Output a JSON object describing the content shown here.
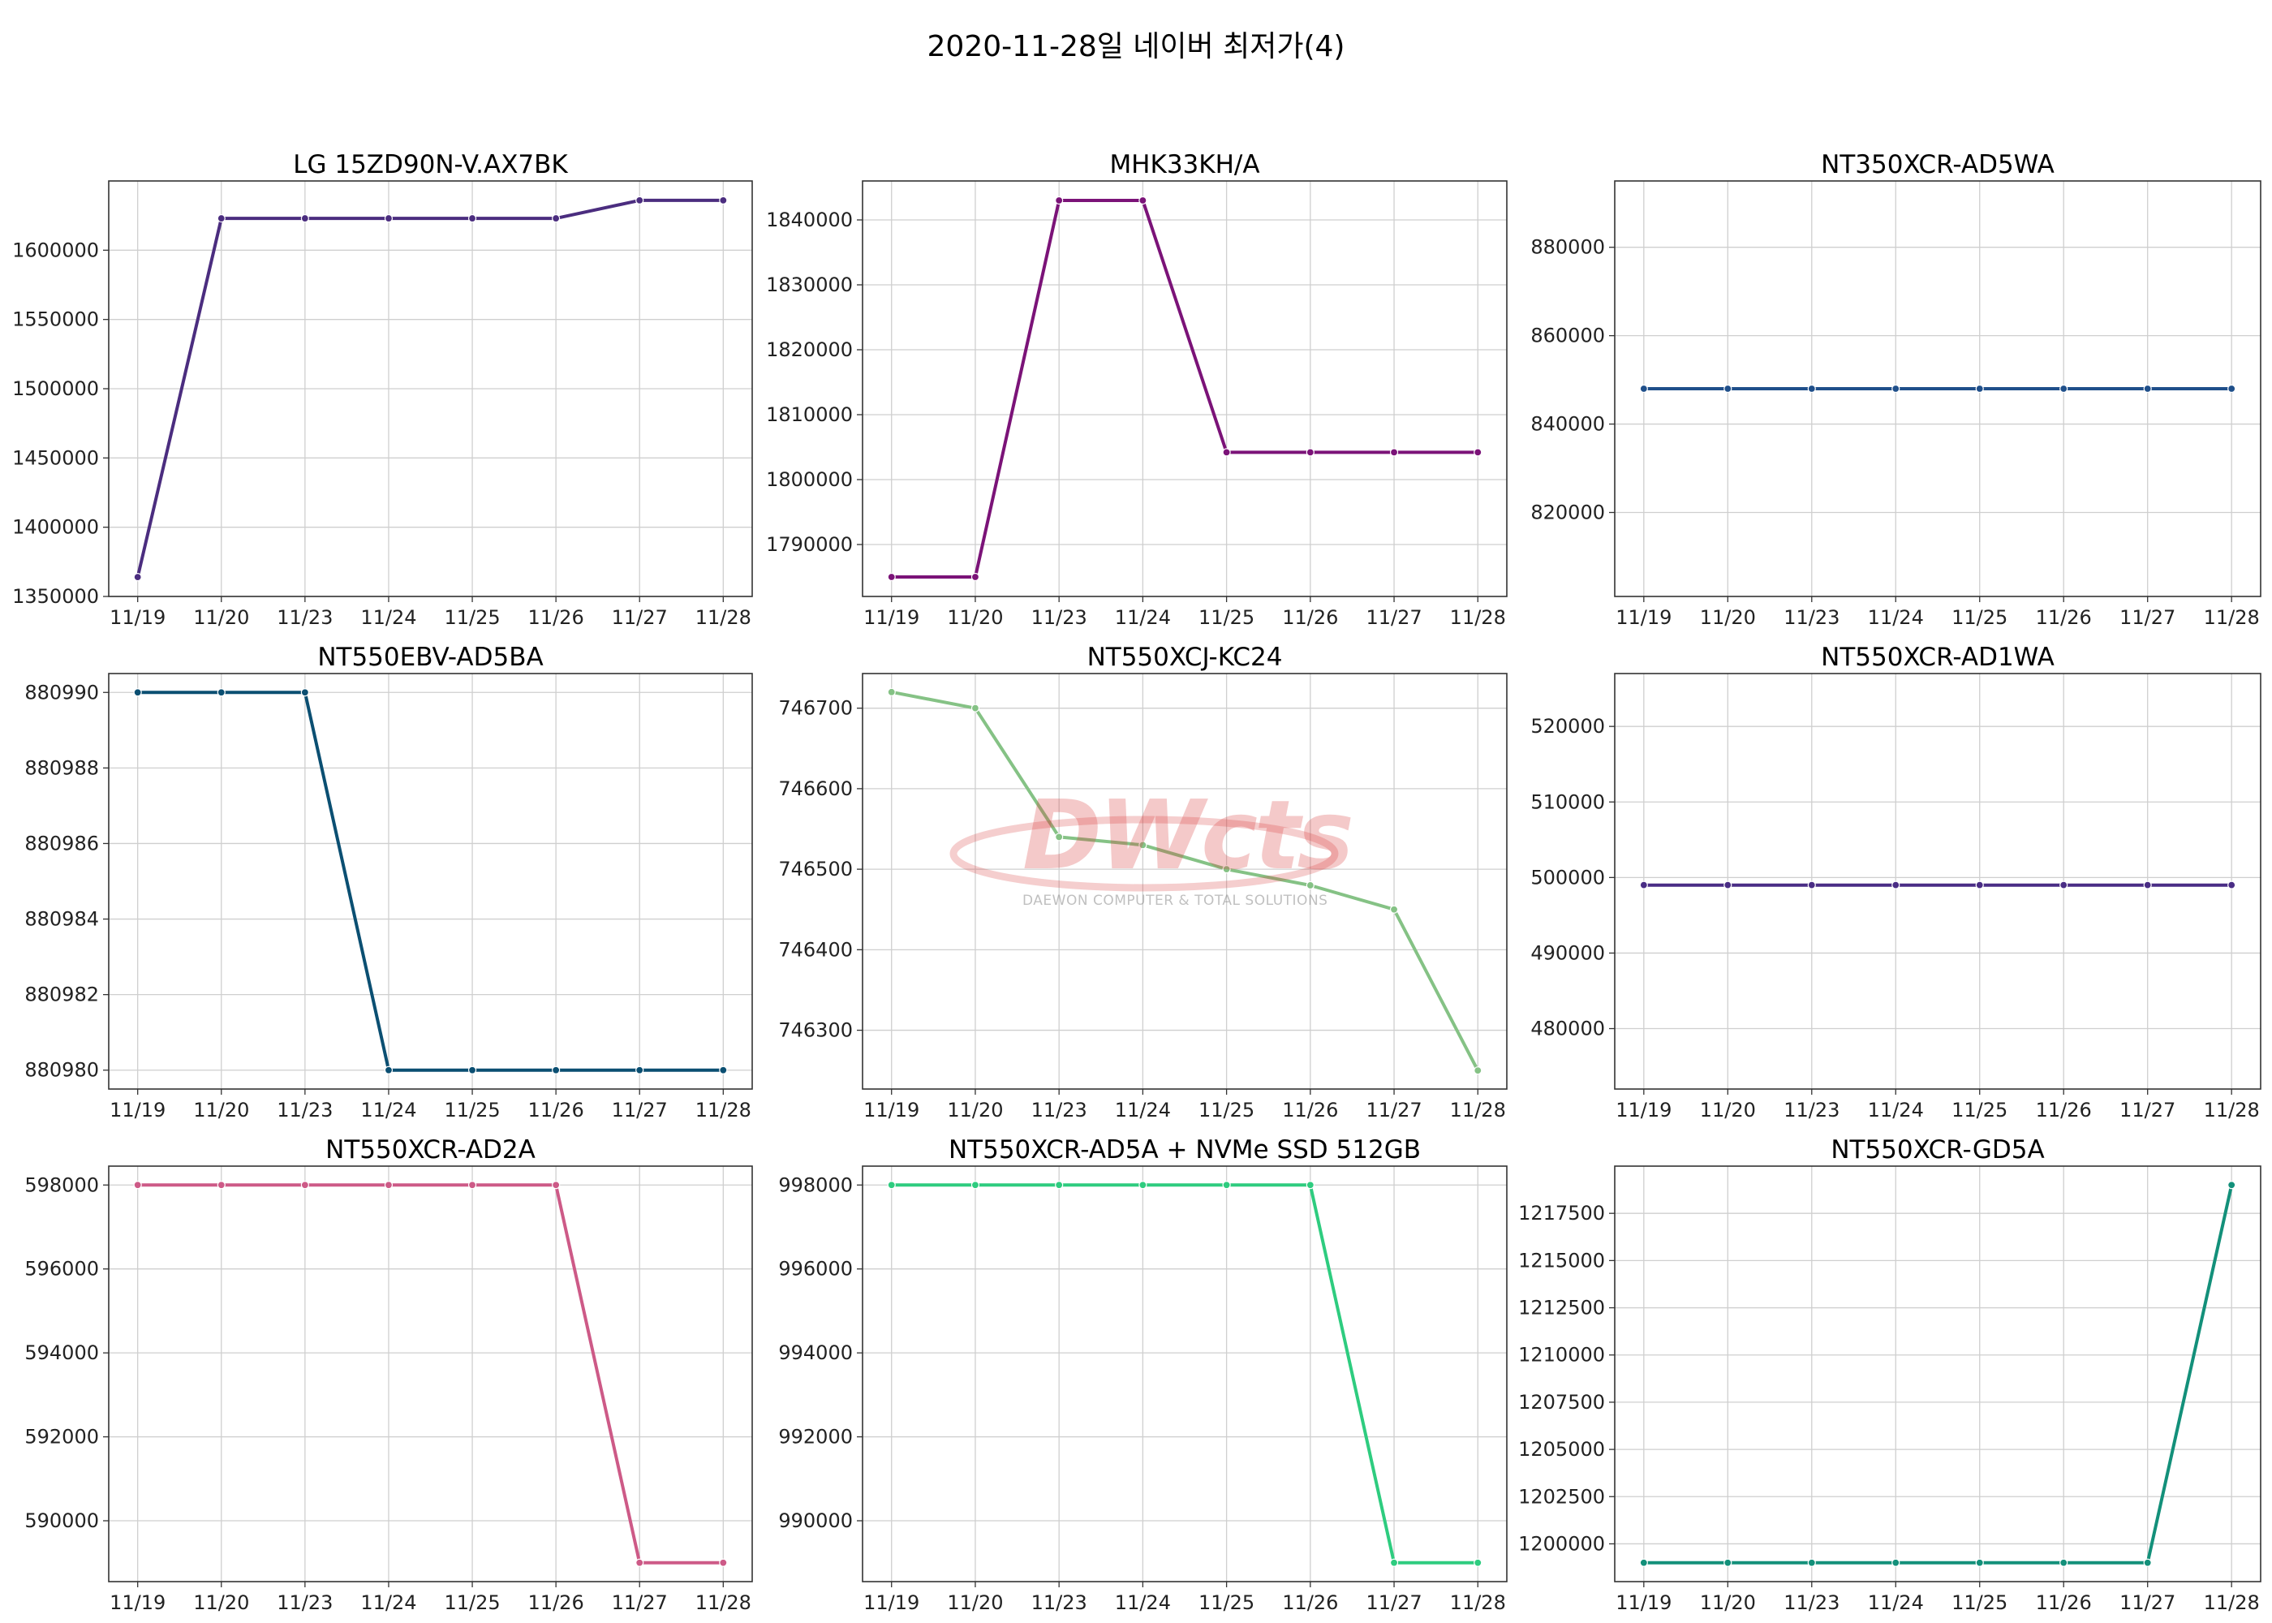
{
  "suptitle": "2020-11-28일 네이버 최저가(4)",
  "watermark": {
    "logo": "DWcts",
    "tagline": "DAEWON COMPUTER & TOTAL SOLUTIONS"
  },
  "chart_data": [
    {
      "type": "line",
      "title": "LG 15ZD90N-V.AX7BK",
      "color": "#4b2d7f",
      "x": [
        "11/19",
        "11/20",
        "11/23",
        "11/24",
        "11/25",
        "11/26",
        "11/27",
        "11/28"
      ],
      "values": [
        1364000,
        1623000,
        1623000,
        1623000,
        1623000,
        1623000,
        1636000,
        1636000
      ],
      "ylim": [
        1350000,
        1650000
      ],
      "yticks": [
        1350000,
        1400000,
        1450000,
        1500000,
        1550000,
        1600000
      ]
    },
    {
      "type": "line",
      "title": "MHK33KH/A",
      "color": "#7b1378",
      "x": [
        "11/19",
        "11/20",
        "11/23",
        "11/24",
        "11/25",
        "11/26",
        "11/27",
        "11/28"
      ],
      "values": [
        1785000,
        1785000,
        1843000,
        1843000,
        1804200,
        1804200,
        1804200,
        1804200
      ],
      "ylim": [
        1782000,
        1846000
      ],
      "yticks": [
        1790000,
        1800000,
        1810000,
        1820000,
        1830000,
        1840000
      ]
    },
    {
      "type": "line",
      "title": "NT350XCR-AD5WA",
      "color": "#1f4f8a",
      "x": [
        "11/19",
        "11/20",
        "11/23",
        "11/24",
        "11/25",
        "11/26",
        "11/27",
        "11/28"
      ],
      "values": [
        848000,
        848000,
        848000,
        848000,
        848000,
        848000,
        848000,
        848000
      ],
      "ylim": [
        801000,
        895000
      ],
      "yticks": [
        820000,
        840000,
        860000,
        880000
      ]
    },
    {
      "type": "line",
      "title": "NT550EBV-AD5BA",
      "color": "#0b4f72",
      "x": [
        "11/19",
        "11/20",
        "11/23",
        "11/24",
        "11/25",
        "11/26",
        "11/27",
        "11/28"
      ],
      "values": [
        880990,
        880990,
        880990,
        880980,
        880980,
        880980,
        880980,
        880980
      ],
      "ylim": [
        880979.5,
        880990.5
      ],
      "yticks": [
        880980,
        880982,
        880984,
        880986,
        880988,
        880990
      ]
    },
    {
      "type": "line",
      "title": "NT550XCJ-KC24",
      "color": "#85c285",
      "x": [
        "11/19",
        "11/20",
        "11/23",
        "11/24",
        "11/25",
        "11/26",
        "11/27",
        "11/28"
      ],
      "values": [
        746720,
        746700,
        746540,
        746530,
        746500,
        746480,
        746450,
        746250
      ],
      "ylim": [
        746227,
        746743
      ],
      "yticks": [
        746300,
        746400,
        746500,
        746600,
        746700
      ]
    },
    {
      "type": "line",
      "title": "NT550XCR-AD1WA",
      "color": "#4a2d85",
      "x": [
        "11/19",
        "11/20",
        "11/23",
        "11/24",
        "11/25",
        "11/26",
        "11/27",
        "11/28"
      ],
      "values": [
        499000,
        499000,
        499000,
        499000,
        499000,
        499000,
        499000,
        499000
      ],
      "ylim": [
        472000,
        527000
      ],
      "yticks": [
        480000,
        490000,
        500000,
        510000,
        520000
      ]
    },
    {
      "type": "line",
      "title": "NT550XCR-AD2A",
      "color": "#cd5a87",
      "x": [
        "11/19",
        "11/20",
        "11/23",
        "11/24",
        "11/25",
        "11/26",
        "11/27",
        "11/28"
      ],
      "values": [
        598000,
        598000,
        598000,
        598000,
        598000,
        598000,
        589000,
        589000
      ],
      "ylim": [
        588550,
        598450
      ],
      "yticks": [
        590000,
        592000,
        594000,
        596000,
        598000
      ]
    },
    {
      "type": "line",
      "title": "NT550XCR-AD5A + NVMe SSD 512GB",
      "color": "#2ecc7f",
      "x": [
        "11/19",
        "11/20",
        "11/23",
        "11/24",
        "11/25",
        "11/26",
        "11/27",
        "11/28"
      ],
      "values": [
        998000,
        998000,
        998000,
        998000,
        998000,
        998000,
        989000,
        989000
      ],
      "ylim": [
        988550,
        998450
      ],
      "yticks": [
        990000,
        992000,
        994000,
        996000,
        998000
      ]
    },
    {
      "type": "line",
      "title": "NT550XCR-GD5A",
      "color": "#13907a",
      "x": [
        "11/19",
        "11/20",
        "11/23",
        "11/24",
        "11/25",
        "11/26",
        "11/27",
        "11/28"
      ],
      "values": [
        1199000,
        1199000,
        1199000,
        1199000,
        1199000,
        1199000,
        1199000,
        1219000
      ],
      "ylim": [
        1198000,
        1220000
      ],
      "yticks": [
        1200000,
        1202500,
        1205000,
        1207500,
        1210000,
        1212500,
        1215000,
        1217500
      ]
    }
  ]
}
